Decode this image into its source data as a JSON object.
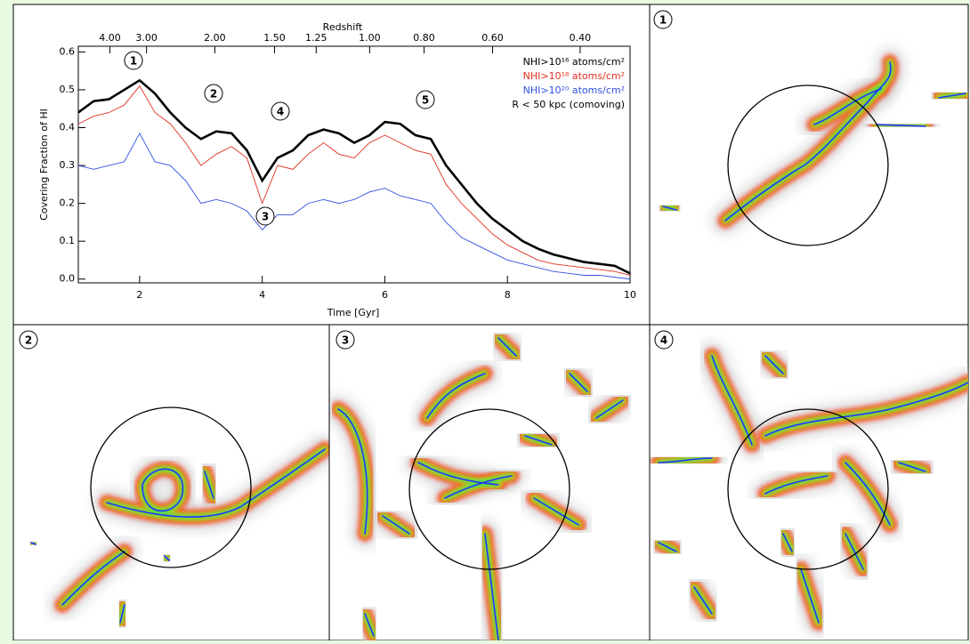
{
  "chart_data": {
    "type": "line",
    "xlabel": "Time [Gyr]",
    "ylabel": "Covering Fraction of HI",
    "x2label": "Redshift",
    "x": [
      1,
      1.25,
      1.5,
      1.75,
      2,
      2.25,
      2.5,
      2.75,
      3,
      3.25,
      3.5,
      3.75,
      4,
      4.25,
      4.5,
      4.75,
      5,
      5.25,
      5.5,
      5.75,
      6,
      6.25,
      6.5,
      6.75,
      7,
      7.25,
      7.5,
      7.75,
      8,
      8.25,
      8.5,
      8.75,
      9,
      9.25,
      9.5,
      9.75,
      10
    ],
    "series": [
      {
        "name": "NHI>10¹⁶ atoms/cm²",
        "color": "#000000",
        "values": [
          0.44,
          0.47,
          0.475,
          0.5,
          0.525,
          0.49,
          0.44,
          0.4,
          0.37,
          0.39,
          0.385,
          0.34,
          0.26,
          0.32,
          0.34,
          0.38,
          0.395,
          0.385,
          0.36,
          0.38,
          0.415,
          0.41,
          0.38,
          0.37,
          0.3,
          0.25,
          0.2,
          0.16,
          0.13,
          0.1,
          0.08,
          0.065,
          0.055,
          0.045,
          0.04,
          0.035,
          0.015
        ]
      },
      {
        "name": "NHI>10¹⁸ atoms/cm²",
        "color": "#e03020",
        "values": [
          0.41,
          0.43,
          0.44,
          0.46,
          0.51,
          0.44,
          0.41,
          0.36,
          0.3,
          0.33,
          0.35,
          0.32,
          0.2,
          0.3,
          0.29,
          0.33,
          0.36,
          0.33,
          0.32,
          0.36,
          0.38,
          0.36,
          0.34,
          0.33,
          0.25,
          0.2,
          0.16,
          0.12,
          0.09,
          0.07,
          0.05,
          0.04,
          0.035,
          0.03,
          0.025,
          0.02,
          0.01
        ]
      },
      {
        "name": "NHI>10²⁰ atoms/cm²",
        "color": "#3050e0",
        "values": [
          0.3,
          0.29,
          0.3,
          0.31,
          0.385,
          0.31,
          0.3,
          0.26,
          0.2,
          0.21,
          0.2,
          0.18,
          0.13,
          0.17,
          0.17,
          0.2,
          0.21,
          0.2,
          0.21,
          0.23,
          0.24,
          0.22,
          0.21,
          0.2,
          0.15,
          0.11,
          0.09,
          0.07,
          0.05,
          0.04,
          0.03,
          0.02,
          0.015,
          0.01,
          0.01,
          0.005,
          0
        ]
      }
    ],
    "legend_note": "R < 50 kpc (comoving)",
    "xlim": [
      1,
      10
    ],
    "xticks": [
      2,
      4,
      6,
      8,
      10
    ],
    "ylim": [
      -0.01,
      0.615
    ],
    "yticks": [
      {
        "value": 0,
        "label": "0.0"
      },
      {
        "value": 0.1,
        "label": "0.1"
      },
      {
        "value": 0.2,
        "label": "0.2"
      },
      {
        "value": 0.3,
        "label": "0.3"
      },
      {
        "value": 0.4,
        "label": "0.4"
      },
      {
        "value": 0.5,
        "label": "0.5"
      },
      {
        "value": 0.6,
        "label": "0.6"
      }
    ],
    "x2ticks": [
      {
        "value": 4,
        "label": "4.00"
      },
      {
        "value": 3,
        "label": "3.00"
      },
      {
        "value": 2,
        "label": "2.00"
      },
      {
        "value": 1.5,
        "label": "1.50"
      },
      {
        "value": 1.25,
        "label": "1.25"
      },
      {
        "value": 1,
        "label": "1.00"
      },
      {
        "value": 0.8,
        "label": "0.80"
      },
      {
        "value": 0.6,
        "label": "0.60"
      },
      {
        "value": 0.4,
        "label": "0.40"
      }
    ],
    "annotations": [
      "1",
      "2",
      "3",
      "4",
      "5"
    ]
  },
  "panels": [
    {
      "label": "1"
    },
    {
      "label": "2"
    },
    {
      "label": "3"
    },
    {
      "label": "4"
    }
  ]
}
